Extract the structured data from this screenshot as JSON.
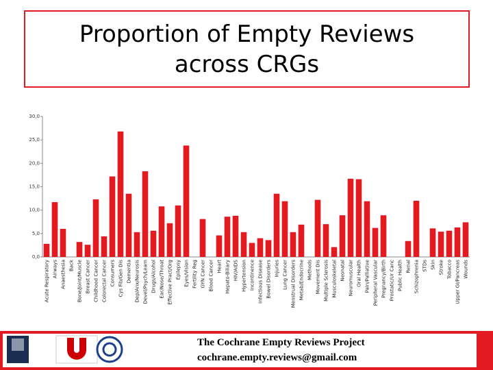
{
  "chart_data": {
    "type": "bar",
    "title": "Proportion of Empty Reviews across CRGs",
    "categories": [
      "Acute Respiratory",
      "Airways",
      "Anaesthesia",
      "Back",
      "Bone/Joint/Muscle",
      "Breast Cancer",
      "Childhood Cancer",
      "Colorectal Cancer",
      "Consumers",
      "Cys Fib/Gen Dis",
      "Dementia",
      "Dep/Anx/Neurosis",
      "Devel/Psych/Learn",
      "Drugs/Alcohol",
      "Ear/Nose/Throat",
      "Effective Pract/Org",
      "Epilepsy",
      "Eyes/Vision",
      "Fertility Reg",
      "GYN Cancer",
      "Blood Cancer",
      "Heart",
      "Hepato-Biliary",
      "HIV/AIDS",
      "Hypertension",
      "Incontinence",
      "Infectious Disease",
      "Bowel Disorders",
      "Injuries",
      "Lung Cancer",
      "Menstrual Disorders",
      "Metab/Endocrine",
      "Methods",
      "Movement Dis",
      "Multiple Sclerosis",
      "Musculoskeletal",
      "Neonatal",
      "Neuromuscular",
      "Oral Health",
      "Pain/Palliative",
      "Peripheral Vascular",
      "Pregnancy/Birth",
      "Prostatic/Ur Canc",
      "Public Health",
      "Renal",
      "Schizophrenia",
      "STDs",
      "Skin",
      "Stroke",
      "Tobacco",
      "Upper GI/Pancreas",
      "Wounds"
    ],
    "values": [
      2.8,
      11.7,
      6.0,
      0,
      3.2,
      2.6,
      12.3,
      4.4,
      17.2,
      26.8,
      13.5,
      5.3,
      18.3,
      5.6,
      10.8,
      7.2,
      11.0,
      23.8,
      0,
      8.1,
      0,
      4.6,
      8.6,
      8.8,
      5.3,
      3.0,
      4.0,
      3.6,
      13.5,
      11.9,
      5.3,
      6.9,
      0,
      12.2,
      7.0,
      2.1,
      8.9,
      16.7,
      16.6,
      11.9,
      6.2,
      8.9,
      0,
      0,
      3.4,
      12.0,
      0,
      6.1,
      5.4,
      5.6,
      6.3,
      7.4
    ],
    "color": "#e21a22",
    "ylim": [
      0,
      30
    ],
    "yticks": [
      {
        "value": 0,
        "label": "0,0"
      },
      {
        "value": 5,
        "label": "5,0"
      },
      {
        "value": 10,
        "label": "10,0"
      },
      {
        "value": 15,
        "label": "15,0"
      },
      {
        "value": 20,
        "label": "20,0"
      },
      {
        "value": 25,
        "label": "25,0"
      },
      {
        "value": 30,
        "label": "30,0"
      }
    ],
    "grid": false
  },
  "footer": {
    "project": "The Cochrane Empty Reviews Project",
    "email": "cochrane.empty.reviews@gmail.com"
  }
}
